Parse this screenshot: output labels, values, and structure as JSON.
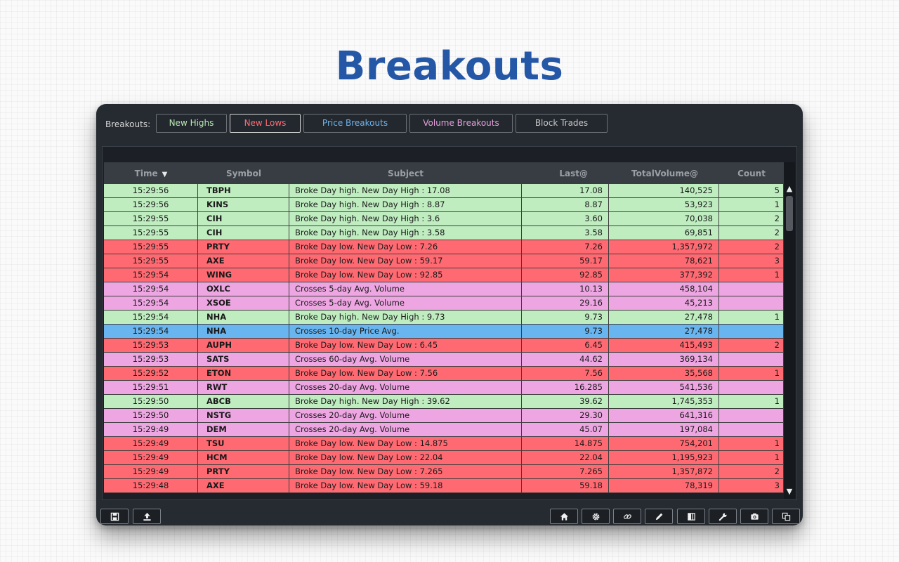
{
  "page": {
    "title": "Breakouts"
  },
  "filters": {
    "label": "Breakouts:",
    "buttons": [
      {
        "label": "New Highs",
        "color": "#b8e8b6",
        "active": false
      },
      {
        "label": "New Lows",
        "color": "#ff6b73",
        "active": true
      },
      {
        "label": "Price Breakouts",
        "color": "#6fb4ec",
        "active": false
      },
      {
        "label": "Volume Breakouts",
        "color": "#e6a2dc",
        "active": false
      },
      {
        "label": "Block Trades",
        "color": "#c8c8c8",
        "active": false
      }
    ]
  },
  "table": {
    "columns": [
      "Time",
      "Symbol",
      "Subject",
      "Last@",
      "TotalVolume@",
      "Count"
    ],
    "sort_column": "Time",
    "row_colors": {
      "high": "#bfedc0",
      "low": "#ff6a72",
      "volume": "#eda6e2",
      "price": "#69b5ef"
    },
    "rows": [
      {
        "time": "15:29:56",
        "symbol": "TBPH",
        "subject": "Broke Day high. New Day High : 17.08",
        "last": "17.08",
        "volume": "140,525",
        "count": "5",
        "kind": "high"
      },
      {
        "time": "15:29:56",
        "symbol": "KINS",
        "subject": "Broke Day high. New Day High : 8.87",
        "last": "8.87",
        "volume": "53,923",
        "count": "1",
        "kind": "high"
      },
      {
        "time": "15:29:55",
        "symbol": "CIH",
        "subject": "Broke Day high. New Day High : 3.6",
        "last": "3.60",
        "volume": "70,038",
        "count": "2",
        "kind": "high"
      },
      {
        "time": "15:29:55",
        "symbol": "CIH",
        "subject": "Broke Day high. New Day High : 3.58",
        "last": "3.58",
        "volume": "69,851",
        "count": "2",
        "kind": "high"
      },
      {
        "time": "15:29:55",
        "symbol": "PRTY",
        "subject": "Broke Day low. New Day Low : 7.26",
        "last": "7.26",
        "volume": "1,357,972",
        "count": "2",
        "kind": "low"
      },
      {
        "time": "15:29:55",
        "symbol": "AXE",
        "subject": "Broke Day low. New Day Low : 59.17",
        "last": "59.17",
        "volume": "78,621",
        "count": "3",
        "kind": "low"
      },
      {
        "time": "15:29:54",
        "symbol": "WING",
        "subject": "Broke Day low. New Day Low : 92.85",
        "last": "92.85",
        "volume": "377,392",
        "count": "1",
        "kind": "low"
      },
      {
        "time": "15:29:54",
        "symbol": "OXLC",
        "subject": "Crosses 5-day Avg. Volume",
        "last": "10.13",
        "volume": "458,104",
        "count": "",
        "kind": "volume"
      },
      {
        "time": "15:29:54",
        "symbol": "XSOE",
        "subject": "Crosses 5-day Avg. Volume",
        "last": "29.16",
        "volume": "45,213",
        "count": "",
        "kind": "volume"
      },
      {
        "time": "15:29:54",
        "symbol": "NHA",
        "subject": "Broke Day high. New Day High : 9.73",
        "last": "9.73",
        "volume": "27,478",
        "count": "1",
        "kind": "high"
      },
      {
        "time": "15:29:54",
        "symbol": "NHA",
        "subject": "Crosses 10-day Price Avg.",
        "last": "9.73",
        "volume": "27,478",
        "count": "",
        "kind": "price"
      },
      {
        "time": "15:29:53",
        "symbol": "AUPH",
        "subject": "Broke Day low. New Day Low : 6.45",
        "last": "6.45",
        "volume": "415,493",
        "count": "2",
        "kind": "low"
      },
      {
        "time": "15:29:53",
        "symbol": "SATS",
        "subject": "Crosses 60-day Avg. Volume",
        "last": "44.62",
        "volume": "369,134",
        "count": "",
        "kind": "volume"
      },
      {
        "time": "15:29:52",
        "symbol": "ETON",
        "subject": "Broke Day low. New Day Low : 7.56",
        "last": "7.56",
        "volume": "35,568",
        "count": "1",
        "kind": "low"
      },
      {
        "time": "15:29:51",
        "symbol": "RWT",
        "subject": "Crosses 20-day Avg. Volume",
        "last": "16.285",
        "volume": "541,536",
        "count": "",
        "kind": "volume"
      },
      {
        "time": "15:29:50",
        "symbol": "ABCB",
        "subject": "Broke Day high. New Day High : 39.62",
        "last": "39.62",
        "volume": "1,745,353",
        "count": "1",
        "kind": "high"
      },
      {
        "time": "15:29:50",
        "symbol": "NSTG",
        "subject": "Crosses 20-day Avg. Volume",
        "last": "29.30",
        "volume": "641,316",
        "count": "",
        "kind": "volume"
      },
      {
        "time": "15:29:49",
        "symbol": "DEM",
        "subject": "Crosses 20-day Avg. Volume",
        "last": "45.07",
        "volume": "197,084",
        "count": "",
        "kind": "volume"
      },
      {
        "time": "15:29:49",
        "symbol": "TSU",
        "subject": "Broke Day low. New Day Low : 14.875",
        "last": "14.875",
        "volume": "754,201",
        "count": "1",
        "kind": "low"
      },
      {
        "time": "15:29:49",
        "symbol": "HCM",
        "subject": "Broke Day low. New Day Low : 22.04",
        "last": "22.04",
        "volume": "1,195,923",
        "count": "1",
        "kind": "low"
      },
      {
        "time": "15:29:49",
        "symbol": "PRTY",
        "subject": "Broke Day low. New Day Low : 7.265",
        "last": "7.265",
        "volume": "1,357,872",
        "count": "2",
        "kind": "low"
      },
      {
        "time": "15:29:48",
        "symbol": "AXE",
        "subject": "Broke Day low. New Day Low : 59.18",
        "last": "59.18",
        "volume": "78,319",
        "count": "3",
        "kind": "low"
      }
    ]
  },
  "toolbar": {
    "left": [
      {
        "name": "save-button",
        "icon": "save-icon"
      },
      {
        "name": "export-button",
        "icon": "upload-icon"
      }
    ],
    "right": [
      {
        "name": "home-button",
        "icon": "home-icon"
      },
      {
        "name": "settings-button",
        "icon": "gear-icon"
      },
      {
        "name": "link-button",
        "icon": "link-icon"
      },
      {
        "name": "edit-button",
        "icon": "pencil-icon"
      },
      {
        "name": "columns-button",
        "icon": "columns-icon"
      },
      {
        "name": "tools-button",
        "icon": "wrench-icon"
      },
      {
        "name": "screenshot-button",
        "icon": "camera-icon"
      },
      {
        "name": "copy-button",
        "icon": "copy-icon"
      }
    ]
  }
}
